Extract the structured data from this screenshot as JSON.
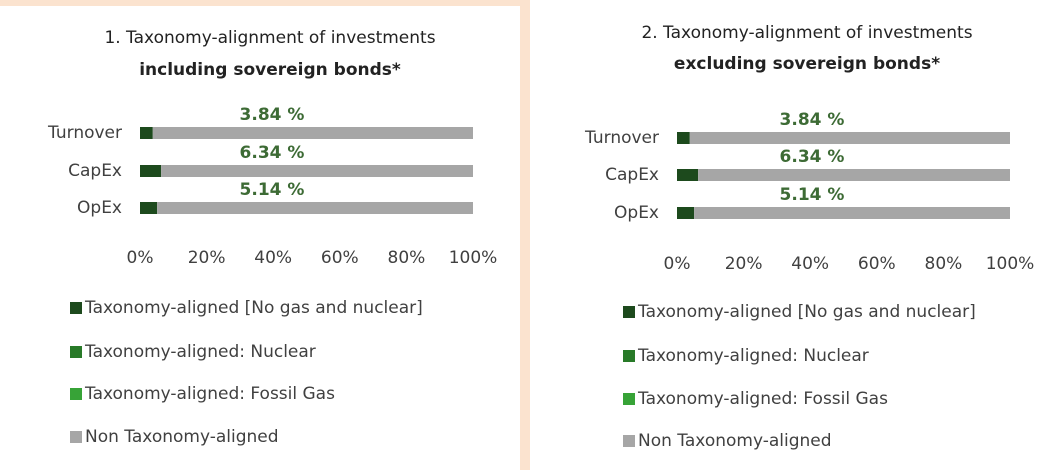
{
  "chart_data": [
    {
      "type": "bar",
      "orientation": "horizontal",
      "stacked": true,
      "title": "1. Taxonomy-alignment of investments",
      "subtitle": "including sovereign bonds*",
      "categories": [
        "Turnover",
        "CapEx",
        "OpEx"
      ],
      "series": [
        {
          "name": "Taxonomy-aligned [No gas and nuclear]",
          "color": "#1d4a1d",
          "values": [
            3.84,
            6.34,
            5.14
          ],
          "value_labels": [
            "3.84 %",
            "6.34 %",
            "5.14 %"
          ]
        },
        {
          "name": "Taxonomy-aligned: Nuclear",
          "color": "#287a28",
          "values": [
            0,
            0,
            0
          ]
        },
        {
          "name": "Taxonomy-aligned: Fossil Gas",
          "color": "#37a337",
          "values": [
            0,
            0,
            0
          ]
        },
        {
          "name": "Non Taxonomy-aligned",
          "color": "#a6a6a6",
          "values": [
            96.16,
            93.66,
            94.86
          ]
        }
      ],
      "xlim": [
        0,
        100
      ],
      "xticks": [
        {
          "value": 0,
          "label": "0%"
        },
        {
          "value": 20,
          "label": "20%"
        },
        {
          "value": 40,
          "label": "40%"
        },
        {
          "value": 60,
          "label": "60%"
        },
        {
          "value": 80,
          "label": "80%"
        },
        {
          "value": 100,
          "label": "100%"
        }
      ]
    },
    {
      "type": "bar",
      "orientation": "horizontal",
      "stacked": true,
      "title": "2. Taxonomy-alignment of investments",
      "subtitle": "excluding sovereign bonds*",
      "categories": [
        "Turnover",
        "CapEx",
        "OpEx"
      ],
      "series": [
        {
          "name": "Taxonomy-aligned [No gas and nuclear]",
          "color": "#1d4a1d",
          "values": [
            3.84,
            6.34,
            5.14
          ],
          "value_labels": [
            "3.84 %",
            "6.34 %",
            "5.14 %"
          ]
        },
        {
          "name": "Taxonomy-aligned: Nuclear",
          "color": "#287a28",
          "values": [
            0,
            0,
            0
          ]
        },
        {
          "name": "Taxonomy-aligned: Fossil Gas",
          "color": "#37a337",
          "values": [
            0,
            0,
            0
          ]
        },
        {
          "name": "Non Taxonomy-aligned",
          "color": "#a6a6a6",
          "values": [
            96.16,
            93.66,
            94.86
          ]
        }
      ],
      "xlim": [
        0,
        100
      ],
      "xticks": [
        {
          "value": 0,
          "label": "0%"
        },
        {
          "value": 20,
          "label": "20%"
        },
        {
          "value": 40,
          "label": "40%"
        },
        {
          "value": 60,
          "label": "60%"
        },
        {
          "value": 80,
          "label": "80%"
        },
        {
          "value": 100,
          "label": "100%"
        }
      ]
    }
  ]
}
